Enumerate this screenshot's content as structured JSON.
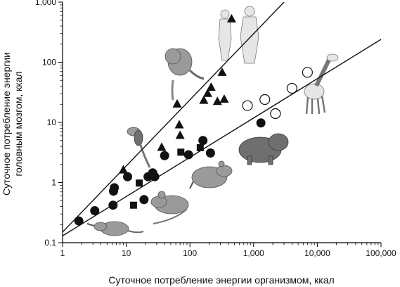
{
  "chart_data": {
    "type": "scatter",
    "xlabel": "Суточное потребление энергии организмом, ккал",
    "ylabel": "Суточное потребление энергии головным мозгом, ккал",
    "x_scale": "log",
    "y_scale": "log",
    "xlim": [
      1,
      100000
    ],
    "ylim": [
      0.1,
      1000
    ],
    "x_ticks": [
      "1",
      "10",
      "100",
      "1,000",
      "10,000",
      "100,000"
    ],
    "y_ticks": [
      "0.1",
      "1",
      "10",
      "100",
      "1,000"
    ],
    "grid": false,
    "series": [
      {
        "marker": "circle-filled",
        "points": [
          [
            1.8,
            0.23
          ],
          [
            3.2,
            0.34
          ],
          [
            6.2,
            0.42
          ],
          [
            6.3,
            0.72
          ],
          [
            6.5,
            0.82
          ],
          [
            10.5,
            1.25
          ],
          [
            19,
            0.52
          ],
          [
            22,
            1.25
          ],
          [
            26,
            1.45
          ],
          [
            28,
            1.25
          ],
          [
            40,
            2.8
          ],
          [
            95,
            2.9
          ],
          [
            160,
            5.0
          ],
          [
            210,
            3.1
          ],
          [
            1300,
            9.8
          ]
        ]
      },
      {
        "marker": "square-filled",
        "points": [
          [
            13,
            0.42
          ],
          [
            16,
            0.98
          ],
          [
            72,
            3.2
          ],
          [
            145,
            3.8
          ]
        ]
      },
      {
        "marker": "triangle-filled",
        "points": [
          [
            9,
            1.6
          ],
          [
            36,
            3.8
          ],
          [
            63,
            20
          ],
          [
            68,
            9
          ],
          [
            70,
            6
          ],
          [
            165,
            23
          ],
          [
            190,
            30
          ],
          [
            215,
            38
          ],
          [
            270,
            22
          ],
          [
            320,
            67
          ],
          [
            345,
            24
          ],
          [
            450,
            520
          ]
        ]
      },
      {
        "marker": "circle-open",
        "points": [
          [
            800,
            19
          ],
          [
            1500,
            24
          ],
          [
            2200,
            14
          ],
          [
            4000,
            37
          ],
          [
            7000,
            68
          ]
        ]
      }
    ],
    "fit_lines": [
      {
        "marker_group": "triangles",
        "from": [
          1,
          0.15
        ],
        "to": [
          3000,
          1000
        ]
      },
      {
        "marker_group": "circles",
        "from": [
          1,
          0.13
        ],
        "to": [
          100000,
          240
        ]
      }
    ],
    "illustrations": [
      "shrew",
      "mouse",
      "rat",
      "capybara",
      "giraffe",
      "marmoset",
      "macaque",
      "humans"
    ]
  }
}
